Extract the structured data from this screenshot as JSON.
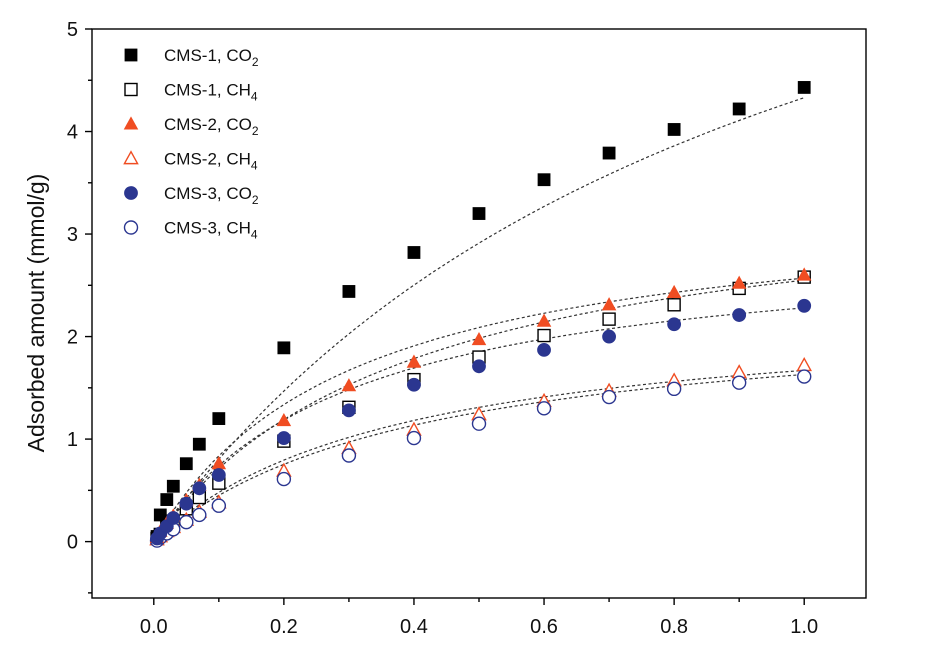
{
  "chart_data": {
    "type": "scatter",
    "title": "",
    "xlabel": "",
    "ylabel": "Adsorbed  amount (mmol/g)",
    "xlim": [
      -0.095,
      1.095
    ],
    "ylim": [
      -0.55,
      5.0
    ],
    "x_ticks": [
      0.0,
      0.2,
      0.4,
      0.6,
      0.8,
      1.0
    ],
    "x_tick_labels": [
      "0.0",
      "0.2",
      "0.4",
      "0.6",
      "0.8",
      "1.0"
    ],
    "y_ticks": [
      0,
      1,
      2,
      3,
      4,
      5
    ],
    "y_tick_labels": [
      "0",
      "1",
      "2",
      "3",
      "4",
      "5"
    ],
    "grid": false,
    "legend_position": "top-left",
    "fit_lines": "dotted",
    "series": [
      {
        "name_main": "CMS-1, CO",
        "name_sub": "2",
        "marker": "square",
        "filled": true,
        "color": "#000000",
        "fit": [
          4.33,
          0.95
        ],
        "x": [
          0.005,
          0.01,
          0.02,
          0.03,
          0.05,
          0.07,
          0.1,
          0.2,
          0.3,
          0.4,
          0.5,
          0.6,
          0.7,
          0.8,
          0.9,
          1.0
        ],
        "y": [
          0.05,
          0.26,
          0.41,
          0.54,
          0.76,
          0.95,
          1.2,
          1.89,
          2.44,
          2.82,
          3.2,
          3.53,
          3.79,
          4.02,
          4.22,
          4.43
        ]
      },
      {
        "name_main": "CMS-1, CH",
        "name_sub": "4",
        "marker": "square",
        "filled": false,
        "color": "#000000",
        "fit": [
          2.55,
          0.4
        ],
        "x": [
          0.005,
          0.01,
          0.02,
          0.03,
          0.05,
          0.07,
          0.1,
          0.2,
          0.3,
          0.4,
          0.5,
          0.6,
          0.7,
          0.8,
          0.9,
          1.0
        ],
        "y": [
          0.03,
          0.07,
          0.14,
          0.2,
          0.32,
          0.43,
          0.57,
          0.98,
          1.31,
          1.58,
          1.8,
          2.01,
          2.17,
          2.31,
          2.47,
          2.58
        ]
      },
      {
        "name_main": "CMS-2, CO",
        "name_sub": "2",
        "marker": "triangle",
        "filled": true,
        "color": "#f04d22",
        "fit": [
          2.57,
          0.3
        ],
        "x": [
          0.005,
          0.01,
          0.02,
          0.03,
          0.05,
          0.07,
          0.1,
          0.2,
          0.3,
          0.4,
          0.5,
          0.6,
          0.7,
          0.8,
          0.9,
          1.0
        ],
        "y": [
          0.04,
          0.1,
          0.18,
          0.25,
          0.4,
          0.55,
          0.76,
          1.18,
          1.52,
          1.75,
          1.97,
          2.15,
          2.31,
          2.43,
          2.52,
          2.6
        ]
      },
      {
        "name_main": "CMS-2, CH",
        "name_sub": "4",
        "marker": "triangle",
        "filled": false,
        "color": "#f04d22",
        "fit": [
          1.67,
          0.38
        ],
        "x": [
          0.005,
          0.01,
          0.02,
          0.03,
          0.05,
          0.07,
          0.1,
          0.2,
          0.3,
          0.4,
          0.5,
          0.6,
          0.7,
          0.8,
          0.9,
          1.0
        ],
        "y": [
          0.02,
          0.05,
          0.1,
          0.14,
          0.21,
          0.29,
          0.38,
          0.69,
          0.91,
          1.09,
          1.24,
          1.37,
          1.47,
          1.57,
          1.65,
          1.72
        ]
      },
      {
        "name_main": "CMS-3, CO",
        "name_sub": "2",
        "marker": "circle",
        "filled": true,
        "color": "#2b3690",
        "fit": [
          2.28,
          0.3
        ],
        "x": [
          0.005,
          0.01,
          0.02,
          0.03,
          0.05,
          0.07,
          0.1,
          0.2,
          0.3,
          0.4,
          0.5,
          0.6,
          0.7,
          0.8,
          0.9,
          1.0
        ],
        "y": [
          0.03,
          0.08,
          0.15,
          0.23,
          0.37,
          0.52,
          0.65,
          1.01,
          1.28,
          1.53,
          1.71,
          1.87,
          2.0,
          2.12,
          2.21,
          2.3
        ]
      },
      {
        "name_main": "CMS-3, CH",
        "name_sub": "4",
        "marker": "circle",
        "filled": false,
        "color": "#2b3690",
        "fit": [
          1.63,
          0.41
        ],
        "x": [
          0.005,
          0.01,
          0.02,
          0.03,
          0.05,
          0.07,
          0.1,
          0.2,
          0.3,
          0.4,
          0.5,
          0.6,
          0.7,
          0.8,
          0.9,
          1.0
        ],
        "y": [
          0.01,
          0.04,
          0.08,
          0.12,
          0.19,
          0.26,
          0.35,
          0.61,
          0.84,
          1.01,
          1.15,
          1.3,
          1.41,
          1.49,
          1.55,
          1.61
        ]
      }
    ]
  }
}
